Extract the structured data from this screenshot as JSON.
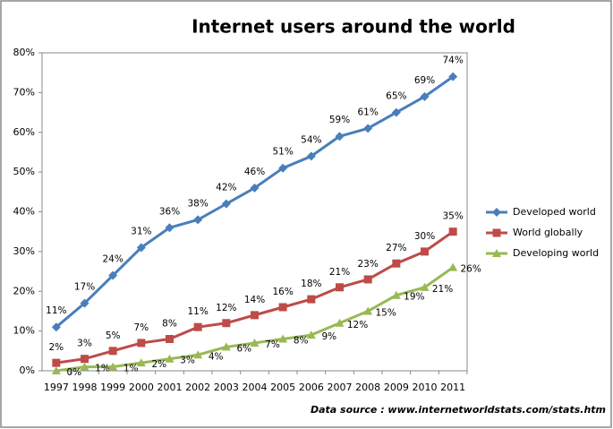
{
  "chart_data": {
    "type": "line",
    "title": "Internet users around the world",
    "categories": [
      "1997",
      "1998",
      "1999",
      "2000",
      "2001",
      "2002",
      "2003",
      "2004",
      "2005",
      "2006",
      "2007",
      "2008",
      "2009",
      "2010",
      "2011"
    ],
    "series": [
      {
        "name": "Developed world",
        "color": "#4a7ebb",
        "marker": "diamond",
        "values": [
          11,
          17,
          24,
          31,
          36,
          38,
          42,
          46,
          51,
          54,
          59,
          61,
          65,
          69,
          74
        ],
        "value_labels": [
          "11%",
          "17%",
          "24%",
          "31%",
          "36%",
          "38%",
          "42%",
          "46%",
          "51%",
          "54%",
          "59%",
          "61%",
          "65%",
          "69%",
          "74%"
        ]
      },
      {
        "name": "World globally",
        "color": "#be4b48",
        "marker": "square",
        "values": [
          2,
          3,
          5,
          7,
          8,
          11,
          12,
          14,
          16,
          18,
          21,
          23,
          27,
          30,
          35
        ],
        "value_labels": [
          "2%",
          "3%",
          "5%",
          "7%",
          "8%",
          "11%",
          "12%",
          "14%",
          "16%",
          "18%",
          "21%",
          "23%",
          "27%",
          "30%",
          "35%"
        ]
      },
      {
        "name": "Developing world",
        "color": "#98b954",
        "marker": "triangle",
        "values": [
          0,
          1,
          1,
          2,
          3,
          4,
          6,
          7,
          8,
          9,
          12,
          15,
          19,
          21,
          26
        ],
        "value_labels": [
          "0%",
          "1%",
          "1%",
          "2%",
          "3%",
          "4%",
          "6%",
          "7%",
          "8%",
          "9%",
          "12%",
          "15%",
          "19%",
          "21%",
          "26%"
        ]
      }
    ],
    "ylim": [
      0,
      80
    ],
    "yticks": [
      {
        "value": 0,
        "label": "0%"
      },
      {
        "value": 10,
        "label": "10%"
      },
      {
        "value": 20,
        "label": "20%"
      },
      {
        "value": 30,
        "label": "30%"
      },
      {
        "value": 40,
        "label": "40%"
      },
      {
        "value": 50,
        "label": "50%"
      },
      {
        "value": 60,
        "label": "60%"
      },
      {
        "value": 70,
        "label": "70%"
      },
      {
        "value": 80,
        "label": "80%"
      }
    ],
    "grid": false,
    "legend": "right",
    "source": "Data source : www.internetworldstats.com/stats.htm"
  }
}
